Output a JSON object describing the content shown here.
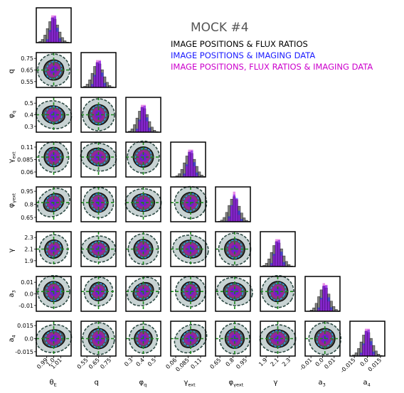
{
  "title": "MOCK #4",
  "colors": {
    "black_series": "#000000",
    "blue_series": "#1a1aff",
    "magenta_series": "#cc00cc",
    "purple_overlap": "#6a1fd6",
    "contour_fill_dark": "#555555",
    "contour_fill_light": "#c8d3d3",
    "contour_edge": "#2d4a43",
    "truth_line": "#1a8a1a",
    "blue_contour": "#2a9df4",
    "magenta_contour": "#cc33cc"
  },
  "chart_data": {
    "type": "corner",
    "legend_position": "top-right",
    "truth_line_style": "dashed green",
    "series": [
      {
        "name": "IMAGE POSITIONS & FLUX RATIOS",
        "color": "#000000"
      },
      {
        "name": "IMAGE POSITIONS & IMAGING DATA",
        "color": "#1a1aff"
      },
      {
        "name": "IMAGE POSITIONS, FLUX RATIOS & IMAGING DATA",
        "color": "#cc00cc"
      }
    ],
    "parameters": [
      {
        "key": "theta_E",
        "label": "θ_E",
        "range": [
          0.975,
          1.025
        ],
        "ticks": [
          0.99,
          1.0,
          1.01
        ],
        "tick_labels": [
          "0.99",
          "1.0",
          "1.01"
        ],
        "truth": 1.0,
        "show_y_label": false
      },
      {
        "key": "q",
        "label": "q",
        "range": [
          0.5,
          0.8
        ],
        "ticks": [
          0.55,
          0.65,
          0.75
        ],
        "tick_labels": [
          "0.55",
          "0.65",
          "0.75"
        ],
        "truth": 0.65,
        "show_y_label": true
      },
      {
        "key": "phi_q",
        "label": "φ_q",
        "range": [
          0.25,
          0.55
        ],
        "ticks": [
          0.3,
          0.4,
          0.5
        ],
        "tick_labels": [
          "0.3",
          "0.4",
          "0.5"
        ],
        "truth": 0.4,
        "show_y_label": true
      },
      {
        "key": "gamma_ext",
        "label": "γ_ext",
        "range": [
          0.05,
          0.12
        ],
        "ticks": [
          0.06,
          0.085,
          0.11
        ],
        "tick_labels": [
          "0.06",
          "0.085",
          "0.11"
        ],
        "truth": 0.09,
        "show_y_label": true
      },
      {
        "key": "phi_gamma_ext",
        "label": "φ_γext",
        "range": [
          0.6,
          1.0
        ],
        "ticks": [
          0.65,
          0.8,
          0.95
        ],
        "tick_labels": [
          "0.65",
          "0.8",
          "0.95"
        ],
        "truth": 0.82,
        "show_y_label": true
      },
      {
        "key": "gamma",
        "label": "γ",
        "range": [
          1.8,
          2.4
        ],
        "ticks": [
          1.9,
          2.1,
          2.3
        ],
        "tick_labels": [
          "1.9",
          "2.1",
          "2.3"
        ],
        "truth": 2.1,
        "show_y_label": true
      },
      {
        "key": "a3",
        "label": "a_3",
        "range": [
          -0.015,
          0.015
        ],
        "ticks": [
          -0.01,
          0.0,
          0.01
        ],
        "tick_labels": [
          "-0.01",
          "0.0",
          "0.01"
        ],
        "truth": 0.002,
        "show_y_label": true
      },
      {
        "key": "a4",
        "label": "a_4",
        "range": [
          -0.02,
          0.02
        ],
        "ticks": [
          -0.015,
          0.0,
          0.015
        ],
        "tick_labels": [
          "-0.015",
          "0.0",
          "0.015"
        ],
        "truth": 0.0,
        "show_y_label": true
      }
    ]
  }
}
